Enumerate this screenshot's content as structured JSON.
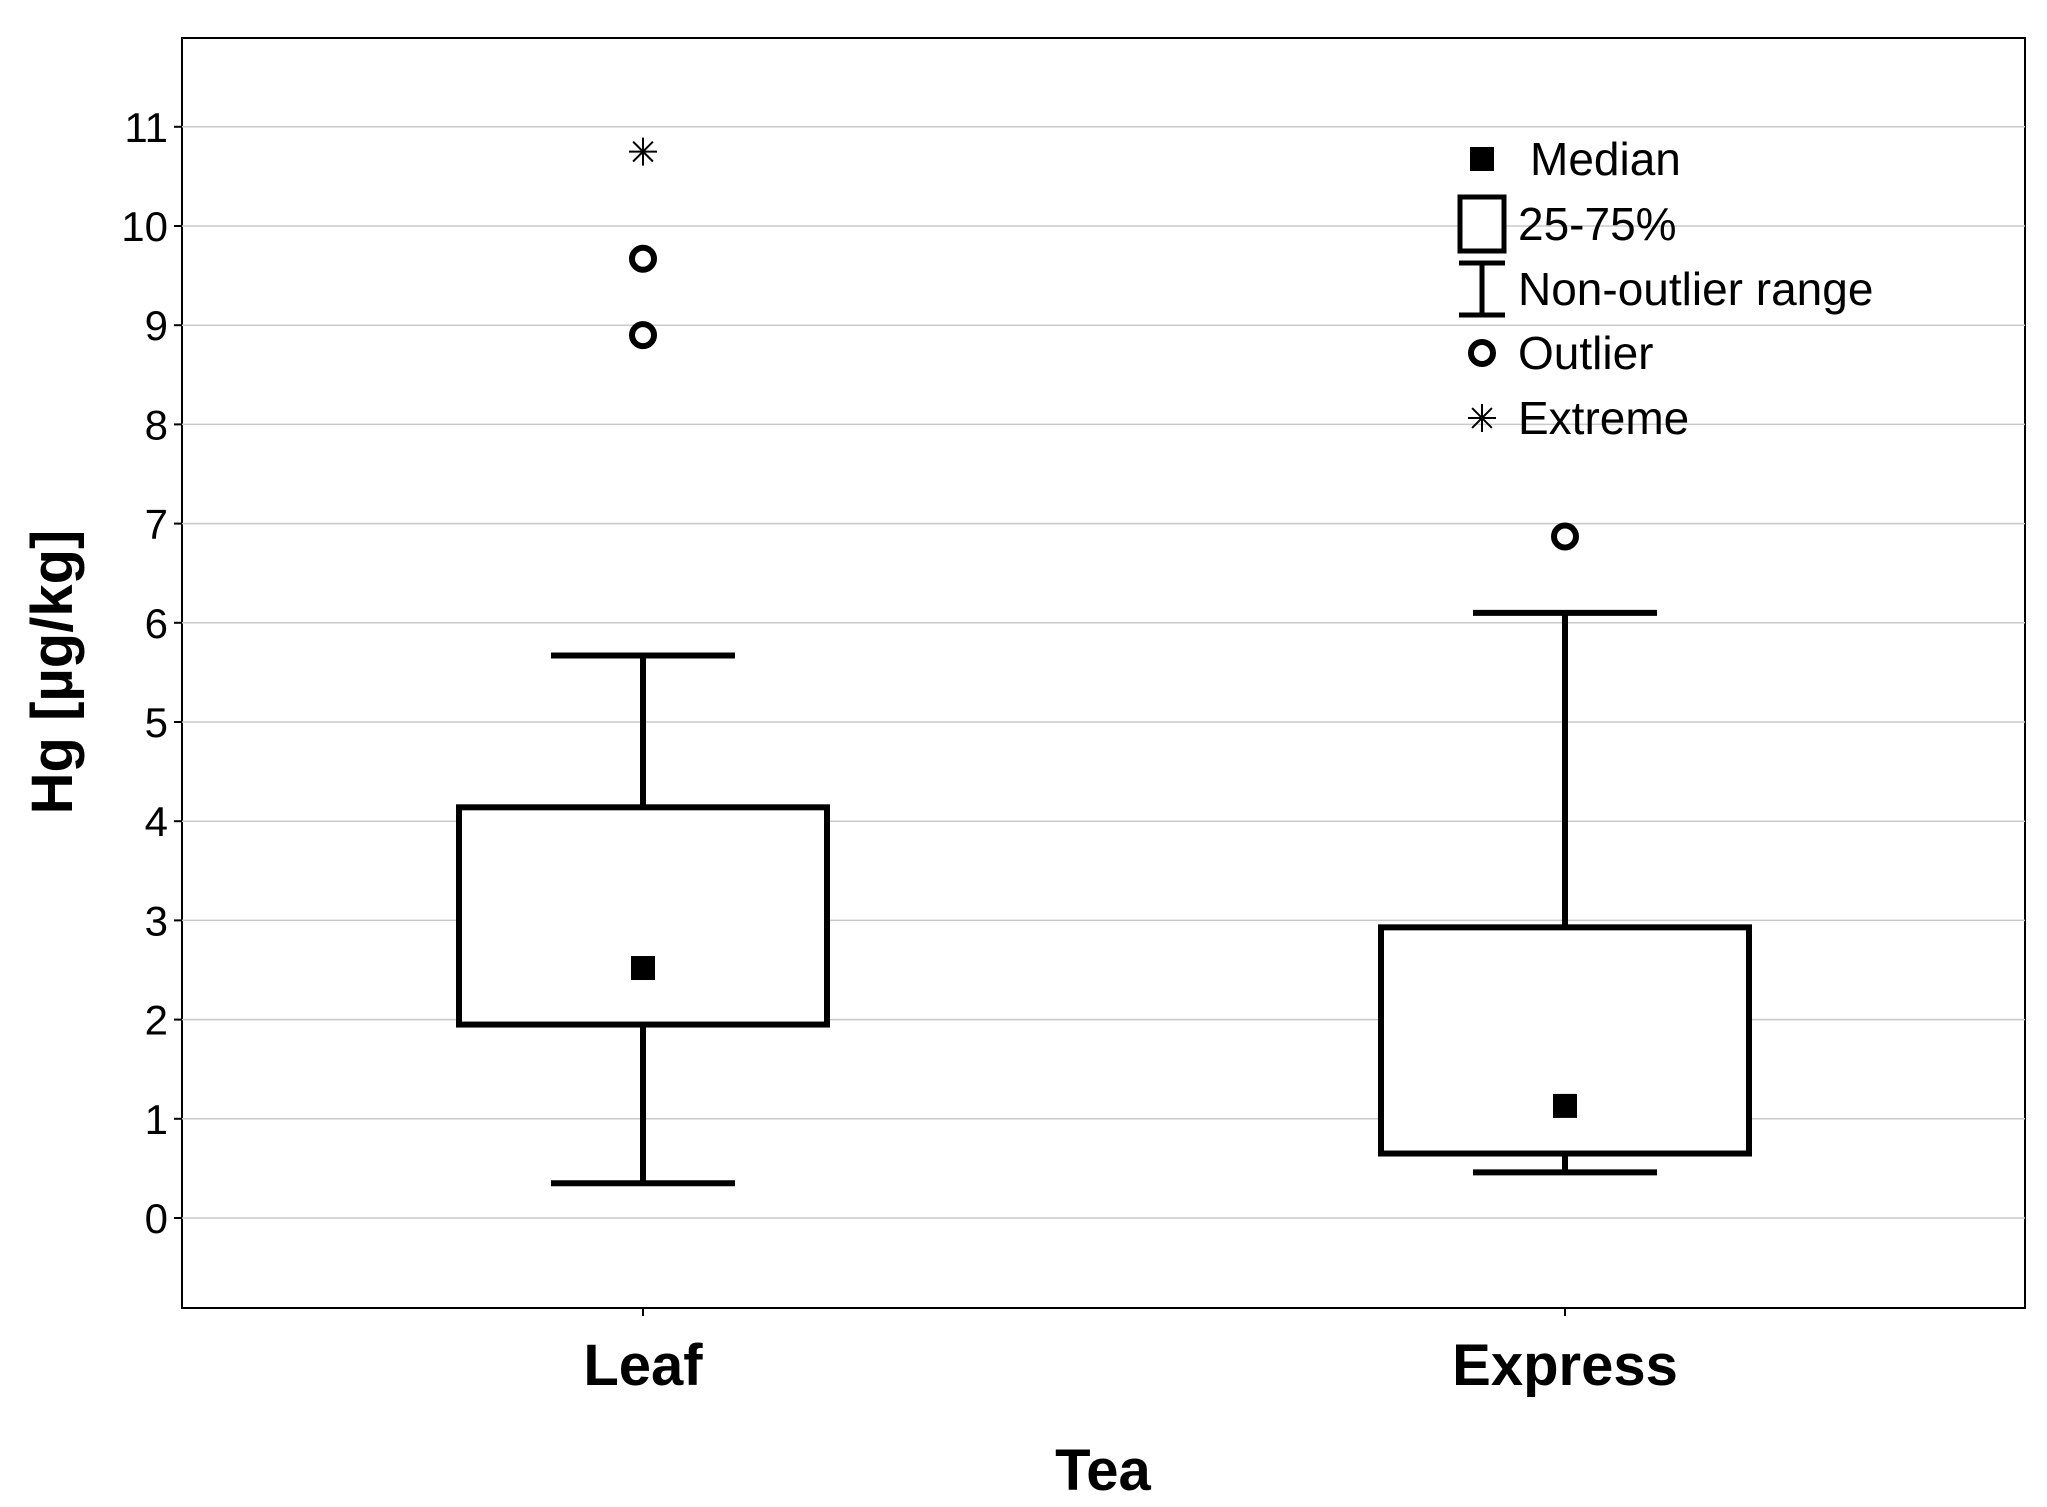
{
  "chart_data": {
    "type": "box",
    "xlabel": "Tea",
    "ylabel": "Hg [µg/kg]",
    "ylim": [
      -0.9,
      11.9
    ],
    "yticks": [
      0,
      1,
      2,
      3,
      4,
      5,
      6,
      7,
      8,
      9,
      10,
      11
    ],
    "grid": true,
    "legend_placement": "top-right",
    "categories": [
      "Leaf",
      "Express"
    ],
    "boxes": [
      {
        "category": "Leaf",
        "median": 2.52,
        "q1": 1.95,
        "q3": 4.14,
        "whisker_low": 0.35,
        "whisker_high": 5.67,
        "outliers": [
          8.9,
          9.67
        ],
        "extremes": [
          10.75
        ]
      },
      {
        "category": "Express",
        "median": 1.13,
        "q1": 0.65,
        "q3": 2.93,
        "whisker_low": 0.46,
        "whisker_high": 6.1,
        "outliers": [
          6.87
        ],
        "extremes": []
      }
    ],
    "legend": [
      {
        "symbol": "filled-square",
        "label": "Median"
      },
      {
        "symbol": "open-box",
        "label": "25-75%"
      },
      {
        "symbol": "whisker",
        "label": "Non-outlier range"
      },
      {
        "symbol": "open-circle",
        "label": "Outlier"
      },
      {
        "symbol": "asterisk",
        "label": "Extreme"
      }
    ]
  }
}
